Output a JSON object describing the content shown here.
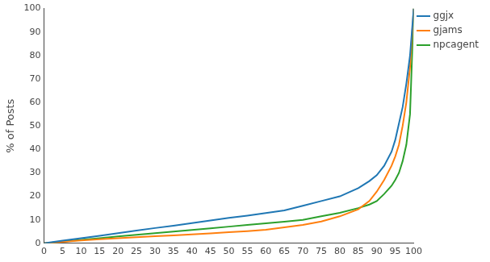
{
  "chart_data": {
    "type": "line",
    "y_label": "% of Posts",
    "x": [
      0,
      5,
      10,
      15,
      20,
      25,
      30,
      35,
      40,
      45,
      50,
      55,
      60,
      65,
      70,
      75,
      80,
      85,
      88,
      90,
      92,
      94,
      95,
      96,
      97,
      98,
      99,
      100
    ],
    "series": [
      {
        "name": "ggjx",
        "color": "#1f77b4",
        "values": [
          0,
          1.1,
          2.2,
          3.2,
          4.3,
          5.4,
          6.5,
          7.5,
          8.6,
          9.7,
          10.8,
          11.8,
          12.9,
          14,
          16,
          18,
          20,
          23.5,
          26.5,
          29,
          33,
          39,
          44,
          51,
          58,
          68,
          80,
          100
        ]
      },
      {
        "name": "gjams",
        "color": "#ff7f0e",
        "values": [
          0,
          0.6,
          1.2,
          1.7,
          2.2,
          2.6,
          3,
          3.4,
          3.8,
          4.2,
          4.7,
          5.2,
          5.8,
          6.8,
          7.8,
          9.3,
          11.5,
          14.5,
          18,
          22,
          27,
          33,
          37,
          42,
          50,
          60,
          75,
          100
        ]
      },
      {
        "name": "npcagent",
        "color": "#2ca02c",
        "values": [
          0,
          0.7,
          1.5,
          2.2,
          2.9,
          3.6,
          4.3,
          5,
          5.7,
          6.4,
          7.1,
          7.8,
          8.5,
          9.2,
          10,
          11.5,
          13,
          15,
          16.5,
          18,
          21,
          24.5,
          27,
          30,
          35,
          42,
          55,
          100
        ]
      }
    ],
    "xlim": [
      0,
      100
    ],
    "xticks": [
      0,
      5,
      10,
      15,
      20,
      25,
      30,
      35,
      40,
      45,
      50,
      55,
      60,
      65,
      70,
      75,
      80,
      85,
      90,
      95,
      100
    ],
    "ylim": [
      0,
      100
    ],
    "yticks": [
      0,
      10,
      20,
      30,
      40,
      50,
      60,
      70,
      80,
      90,
      100
    ],
    "grid": false,
    "legend": "right"
  }
}
